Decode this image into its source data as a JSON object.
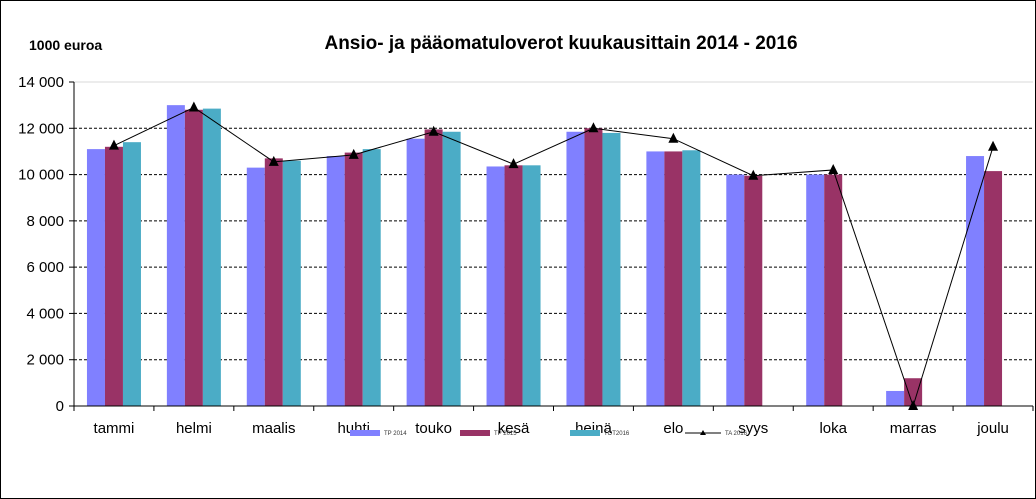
{
  "chart_data": {
    "type": "bar",
    "title": "Ansio- ja pääomatuloverot  kuukausittain 2014 - 2016",
    "ylabel": "1000 euroa",
    "xlabel": "",
    "ylim": [
      0,
      14000
    ],
    "yticks": [
      0,
      2000,
      4000,
      6000,
      8000,
      10000,
      12000,
      14000
    ],
    "ytick_labels": [
      "0",
      "2 000",
      "4 000",
      "6 000",
      "8 000",
      "10 000",
      "12 000",
      "14 000"
    ],
    "grid": true,
    "legend_placement": "bottom",
    "categories": [
      "tammi",
      "helmi",
      "maalis",
      "huhti",
      "touko",
      "kesä",
      "heinä",
      "elo",
      "syys",
      "loka",
      "marras",
      "joulu"
    ],
    "series": [
      {
        "name": "TP 2014",
        "kind": "bar",
        "color": "#8080FF",
        "values": [
          11100,
          13000,
          10300,
          10800,
          11550,
          10350,
          11850,
          11000,
          10000,
          10000,
          650,
          10800
        ]
      },
      {
        "name": "TP 2015",
        "kind": "bar",
        "color": "#993366",
        "values": [
          11200,
          12800,
          10700,
          10950,
          11950,
          10400,
          12000,
          11000,
          9950,
          10000,
          1200,
          10150
        ]
      },
      {
        "name": "TOT2016",
        "kind": "bar",
        "color": "#4BACC6",
        "values": [
          11400,
          12850,
          10600,
          11100,
          11850,
          10400,
          11800,
          11050,
          null,
          null,
          null,
          null
        ]
      },
      {
        "name": "TA 2016",
        "kind": "line",
        "color": "#000000",
        "values": [
          11250,
          12900,
          10550,
          10850,
          11850,
          10450,
          12000,
          11550,
          9950,
          10200,
          0,
          11200
        ]
      }
    ]
  }
}
